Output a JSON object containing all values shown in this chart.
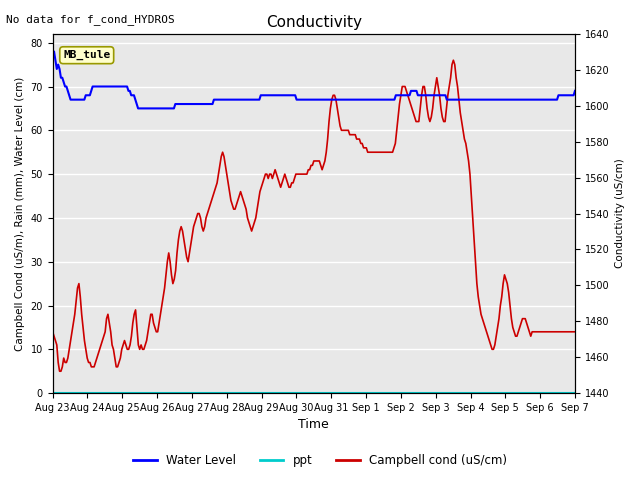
{
  "title": "Conductivity",
  "top_left_text": "No data for f_cond_HYDROS",
  "xlabel": "Time",
  "ylabel_left": "Campbell Cond (uS/m), Rain (mm), Water Level (cm)",
  "ylabel_right": "Conductivity (uS/cm)",
  "ylim_left": [
    0,
    82
  ],
  "ylim_right": [
    1440,
    1640
  ],
  "annotation_box": "MB_tule",
  "background_color": "#e8e8e8",
  "x_ticks": [
    "Aug 23",
    "Aug 24",
    "Aug 25",
    "Aug 26",
    "Aug 27",
    "Aug 28",
    "Aug 29",
    "Aug 30",
    "Aug 31",
    "Sep 1",
    "Sep 2",
    "Sep 3",
    "Sep 4",
    "Sep 5",
    "Sep 6",
    "Sep 7"
  ],
  "water_level": [
    77,
    78,
    76,
    74,
    75,
    74,
    72,
    72,
    71,
    70,
    70,
    69,
    68,
    67,
    67,
    67,
    67,
    67,
    67,
    67,
    67,
    67,
    67,
    67,
    68,
    68,
    68,
    68,
    69,
    70,
    70,
    70,
    70,
    70,
    70,
    70,
    70,
    70,
    70,
    70,
    70,
    70,
    70,
    70,
    70,
    70,
    70,
    70,
    70,
    70,
    70,
    70,
    70,
    70,
    70,
    69,
    69,
    68,
    68,
    68,
    67,
    66,
    65,
    65,
    65,
    65,
    65,
    65,
    65,
    65,
    65,
    65,
    65,
    65,
    65,
    65,
    65,
    65,
    65,
    65,
    65,
    65,
    65,
    65,
    65,
    65,
    65,
    65,
    65,
    66,
    66,
    66,
    66,
    66,
    66,
    66,
    66,
    66,
    66,
    66,
    66,
    66,
    66,
    66,
    66,
    66,
    66,
    66,
    66,
    66,
    66,
    66,
    66,
    66,
    66,
    66,
    66,
    67,
    67,
    67,
    67,
    67,
    67,
    67,
    67,
    67,
    67,
    67,
    67,
    67,
    67,
    67,
    67,
    67,
    67,
    67,
    67,
    67,
    67,
    67,
    67,
    67,
    67,
    67,
    67,
    67,
    67,
    67,
    67,
    67,
    67,
    68,
    68,
    68,
    68,
    68,
    68,
    68,
    68,
    68,
    68,
    68,
    68,
    68,
    68,
    68,
    68,
    68,
    68,
    68,
    68,
    68,
    68,
    68,
    68,
    68,
    68,
    67,
    67,
    67,
    67,
    67,
    67,
    67,
    67,
    67,
    67,
    67,
    67,
    67,
    67,
    67,
    67,
    67,
    67,
    67,
    67,
    67,
    67,
    67,
    67,
    67,
    67,
    67,
    67,
    67,
    67,
    67,
    67,
    67,
    67,
    67,
    67,
    67,
    67,
    67,
    67,
    67,
    67,
    67,
    67,
    67,
    67,
    67,
    67,
    67,
    67,
    67,
    67,
    67,
    67,
    67,
    67,
    67,
    67,
    67,
    67,
    67,
    67,
    67,
    67,
    67,
    67,
    67,
    67,
    67,
    67,
    67,
    67,
    68,
    68,
    68,
    68,
    68,
    68,
    68,
    68,
    68,
    68,
    68,
    69,
    69,
    69,
    69,
    69,
    68,
    68,
    68,
    68,
    68,
    68,
    68,
    68,
    68,
    68,
    68,
    68,
    68,
    68,
    68,
    68,
    68,
    68,
    68,
    68,
    68,
    67,
    67,
    67,
    67,
    67,
    67,
    67,
    67,
    67,
    67,
    67,
    67,
    67,
    67,
    67,
    67,
    67,
    67,
    67,
    67,
    67,
    67,
    67,
    67,
    67,
    67,
    67,
    67,
    67,
    67,
    67,
    67,
    67,
    67,
    67,
    67,
    67,
    67,
    67,
    67,
    67,
    67,
    67,
    67,
    67,
    67,
    67,
    67,
    67,
    67,
    67,
    67,
    67,
    67,
    67,
    67,
    67,
    67,
    67,
    67,
    67,
    67,
    67,
    67,
    67,
    67,
    67,
    67,
    67,
    67,
    67,
    67,
    67,
    67,
    67,
    67,
    67,
    67,
    67,
    67,
    67,
    68,
    68,
    68,
    68,
    68,
    68,
    68,
    68,
    68,
    68,
    68,
    68,
    69
  ],
  "campbell_cond_left": [
    14,
    13,
    12,
    11,
    7,
    5,
    5,
    6,
    8,
    7,
    7,
    8,
    10,
    12,
    14,
    16,
    18,
    21,
    24,
    25,
    22,
    18,
    15,
    12,
    10,
    8,
    7,
    7,
    6,
    6,
    6,
    7,
    8,
    9,
    10,
    11,
    12,
    13,
    14,
    17,
    18,
    16,
    14,
    11,
    10,
    8,
    6,
    6,
    7,
    8,
    10,
    11,
    12,
    11,
    10,
    10,
    11,
    13,
    16,
    18,
    19,
    15,
    11,
    10,
    11,
    10,
    10,
    11,
    12,
    14,
    16,
    18,
    18,
    16,
    15,
    14,
    14,
    16,
    18,
    20,
    22,
    24,
    27,
    30,
    32,
    30,
    27,
    25,
    26,
    28,
    32,
    35,
    37,
    38,
    37,
    35,
    33,
    31,
    30,
    32,
    34,
    36,
    38,
    39,
    40,
    41,
    41,
    40,
    38,
    37,
    38,
    40,
    41,
    42,
    43,
    44,
    45,
    46,
    47,
    48,
    50,
    52,
    54,
    55,
    54,
    52,
    50,
    48,
    46,
    44,
    43,
    42,
    42,
    43,
    44,
    45,
    46,
    45,
    44,
    43,
    42,
    40,
    39,
    38,
    37,
    38,
    39,
    40,
    42,
    44,
    46,
    47,
    48,
    49,
    50,
    50,
    49,
    50,
    50,
    49,
    50,
    51,
    50,
    49,
    48,
    47,
    48,
    49,
    50,
    49,
    48,
    47,
    47,
    48,
    48,
    49,
    50,
    50,
    50,
    50,
    50,
    50,
    50,
    50,
    50,
    51,
    51,
    52,
    52,
    53,
    53,
    53,
    53,
    53,
    52,
    51,
    52,
    53,
    55,
    58,
    62,
    65,
    67,
    68,
    68,
    67,
    65,
    63,
    61,
    60,
    60,
    60,
    60,
    60,
    60,
    59,
    59,
    59,
    59,
    59,
    58,
    58,
    58,
    57,
    57,
    56,
    56,
    56,
    55,
    55,
    55,
    55,
    55,
    55,
    55,
    55,
    55,
    55,
    55,
    55,
    55,
    55,
    55,
    55,
    55,
    55,
    55,
    56,
    57,
    60,
    63,
    66,
    68,
    70,
    70,
    70,
    69,
    68,
    67,
    66,
    65,
    64,
    63,
    62,
    62,
    62,
    65,
    68,
    70,
    70,
    68,
    65,
    63,
    62,
    63,
    65,
    68,
    70,
    72,
    70,
    68,
    65,
    63,
    62,
    62,
    65,
    68,
    70,
    72,
    75,
    76,
    75,
    72,
    70,
    67,
    64,
    62,
    60,
    58,
    57,
    55,
    53,
    50,
    45,
    40,
    35,
    30,
    25,
    22,
    20,
    18,
    17,
    16,
    15,
    14,
    13,
    12,
    11,
    10,
    10,
    11,
    13,
    15,
    17,
    20,
    22,
    25,
    27,
    26,
    25,
    23,
    20,
    17,
    15,
    14,
    13,
    13,
    14,
    15,
    16,
    17,
    17,
    17,
    16,
    15,
    14,
    13,
    14,
    14,
    14,
    14,
    14,
    14,
    14,
    14,
    14,
    14,
    14,
    14,
    14,
    14,
    14,
    14,
    14,
    14,
    14,
    14,
    14,
    14,
    14,
    14,
    14,
    14,
    14,
    14,
    14,
    14,
    14,
    14
  ],
  "ppt_color": "#00cccc",
  "water_level_color": "#0000ff",
  "campbell_cond_color": "#cc0000",
  "legend_items": [
    "Water Level",
    "ppt",
    "Campbell cond (uS/cm)"
  ],
  "yticks_left": [
    0,
    10,
    20,
    30,
    40,
    50,
    60,
    70,
    80
  ],
  "yticks_right": [
    1440,
    1460,
    1480,
    1500,
    1520,
    1540,
    1560,
    1580,
    1600,
    1620,
    1640
  ]
}
